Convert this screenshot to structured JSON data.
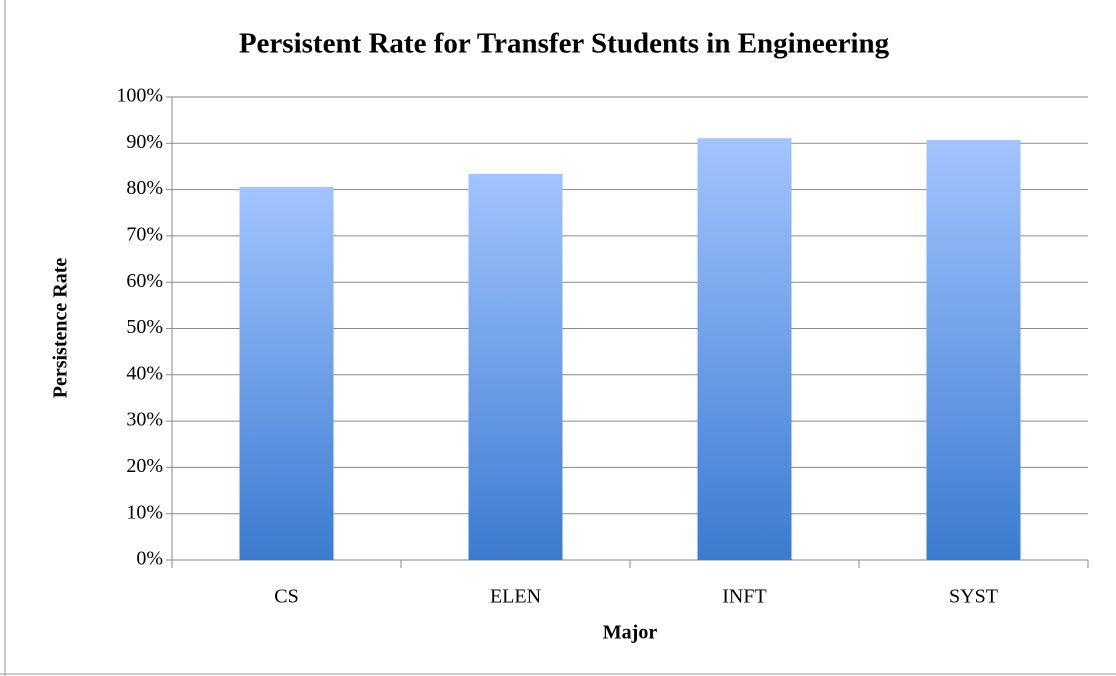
{
  "chart_data": {
    "type": "bar",
    "title": "Persistent Rate for Transfer Students in Engineering",
    "x_label": "Major",
    "y_label": "Persistence Rate",
    "categories": [
      "CS",
      "ELEN",
      "INFT",
      "SYST"
    ],
    "values": [
      80.6,
      83.4,
      91.1,
      90.7
    ],
    "colors": [
      "#a2c4ff",
      "#3b7bd0"
    ],
    "ylim": [
      0,
      100
    ],
    "yticks": [
      {
        "value": 0,
        "label": "0%"
      },
      {
        "value": 10,
        "label": "10%"
      },
      {
        "value": 20,
        "label": "20%"
      },
      {
        "value": 30,
        "label": "30%"
      },
      {
        "value": 40,
        "label": "40%"
      },
      {
        "value": 50,
        "label": "50%"
      },
      {
        "value": 60,
        "label": "60%"
      },
      {
        "value": 70,
        "label": "70%"
      },
      {
        "value": 80,
        "label": "80%"
      },
      {
        "value": 90,
        "label": "90%"
      },
      {
        "value": 100,
        "label": "100%"
      }
    ],
    "grid": true
  }
}
